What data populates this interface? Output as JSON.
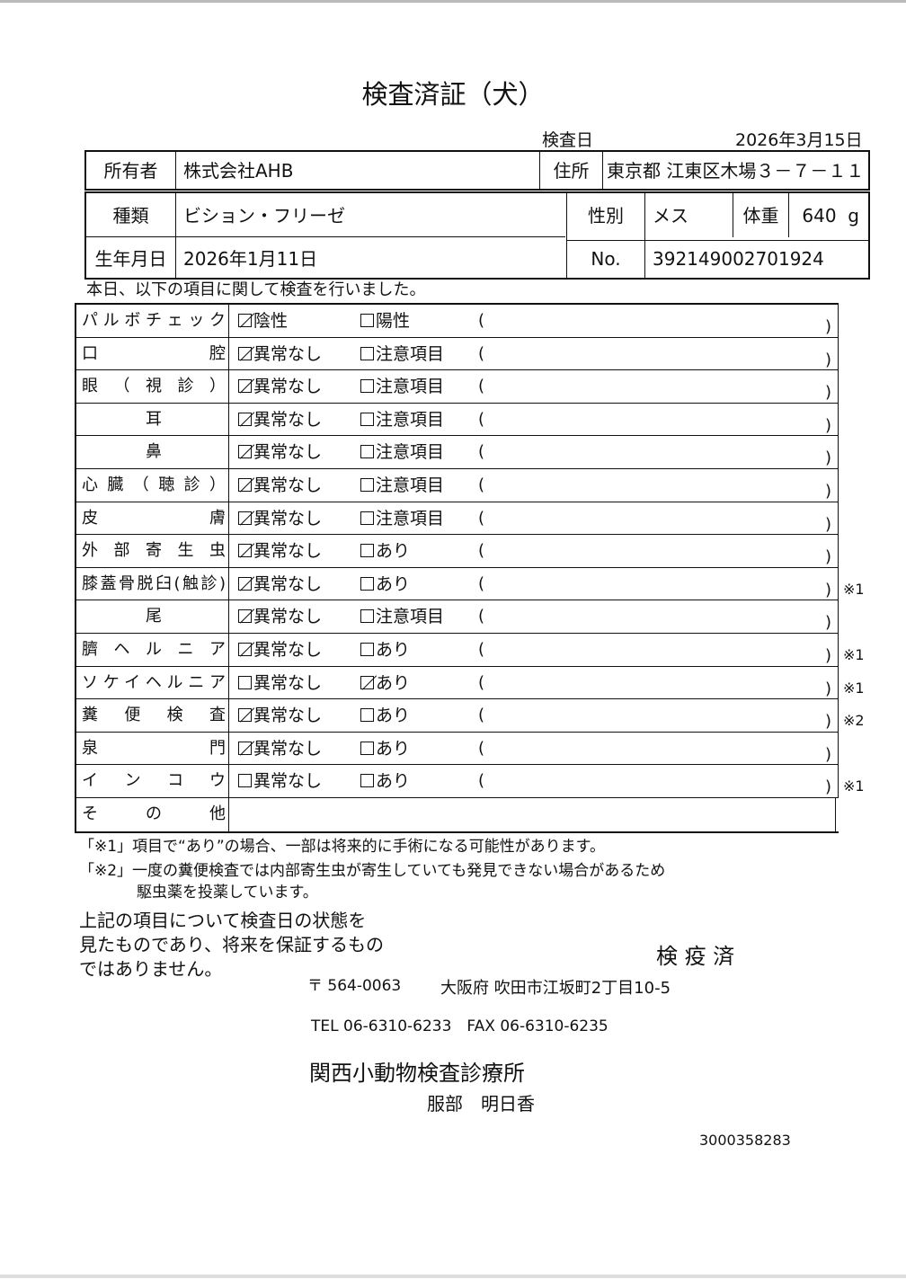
{
  "title": "検査済証（犬）",
  "exam_date": {
    "label": "検査日",
    "value": "2026年3月15日"
  },
  "owner": {
    "label": "所有者",
    "value": "株式会社AHB"
  },
  "address": {
    "label": "住所",
    "value": "東京都 江東区木場３－７－１１"
  },
  "breed": {
    "label": "種類",
    "value": "ビション・フリーゼ"
  },
  "sex": {
    "label": "性別",
    "value": "メス"
  },
  "weight": {
    "label": "体重",
    "value": "640",
    "unit": "g"
  },
  "birth": {
    "label": "生年月日",
    "value": "2026年1月11日"
  },
  "number": {
    "label": "No.",
    "value": "392149002701924"
  },
  "intro": "本日、以下の項目に関して検査を行いました。",
  "rows": [
    {
      "label": "パルボチェック",
      "opt1": "陰性",
      "opt2": "陽性",
      "checked": 1,
      "note": ""
    },
    {
      "label": "口腔",
      "opt1": "異常なし",
      "opt2": "注意項目",
      "checked": 1,
      "note": ""
    },
    {
      "label": "眼（視診）",
      "opt1": "異常なし",
      "opt2": "注意項目",
      "checked": 1,
      "note": ""
    },
    {
      "label": "耳",
      "opt1": "異常なし",
      "opt2": "注意項目",
      "checked": 1,
      "note": "",
      "center": true
    },
    {
      "label": "鼻",
      "opt1": "異常なし",
      "opt2": "注意項目",
      "checked": 1,
      "note": "",
      "center": true
    },
    {
      "label": "心臓（聴診）",
      "opt1": "異常なし",
      "opt2": "注意項目",
      "checked": 1,
      "note": ""
    },
    {
      "label": "皮膚",
      "opt1": "異常なし",
      "opt2": "注意項目",
      "checked": 1,
      "note": ""
    },
    {
      "label": "外部寄生虫",
      "opt1": "異常なし",
      "opt2": "あり",
      "checked": 1,
      "note": ""
    },
    {
      "label": "膝蓋骨脱臼(触診)",
      "opt1": "異常なし",
      "opt2": "あり",
      "checked": 1,
      "note": "※1"
    },
    {
      "label": "尾",
      "opt1": "異常なし",
      "opt2": "注意項目",
      "checked": 1,
      "note": "",
      "center": true
    },
    {
      "label": "臍ヘルニア",
      "opt1": "異常なし",
      "opt2": "あり",
      "checked": 1,
      "note": "※1"
    },
    {
      "label": "ソケイヘルニア",
      "opt1": "異常なし",
      "opt2": "あり",
      "checked": 2,
      "note": "※1"
    },
    {
      "label": "糞便検査",
      "opt1": "異常なし",
      "opt2": "あり",
      "checked": 1,
      "note": "※2"
    },
    {
      "label": "泉門",
      "opt1": "異常なし",
      "opt2": "あり",
      "checked": 1,
      "note": ""
    },
    {
      "label": "インコウ",
      "opt1": "異常なし",
      "opt2": "あり",
      "checked": 0,
      "note": "※1"
    }
  ],
  "other_label": "その他",
  "footnote1": "「※1」項目で“あり”の場合、一部は将来的に手術になる可能性があります。",
  "footnote2a": "「※2」一度の糞便検査では内部寄生虫が寄生していても発見できない場合があるため",
  "footnote2b": "駆虫薬を投薬しています。",
  "disclaimer": [
    "上記の項目について検査日の状態を",
    "見たものであり、将来を保証するもの",
    "ではありません。"
  ],
  "stamp": "検 疫 済",
  "postal": "〒 564-0063",
  "clinic_address": "大阪府 吹田市江坂町2丁目10-5",
  "phone": "TEL 06-6310-6233　FAX 06-6310-6235",
  "clinic_name": "関西小動物検査診療所",
  "vet_name": "服部　明日香",
  "doc_id": "3000358283"
}
